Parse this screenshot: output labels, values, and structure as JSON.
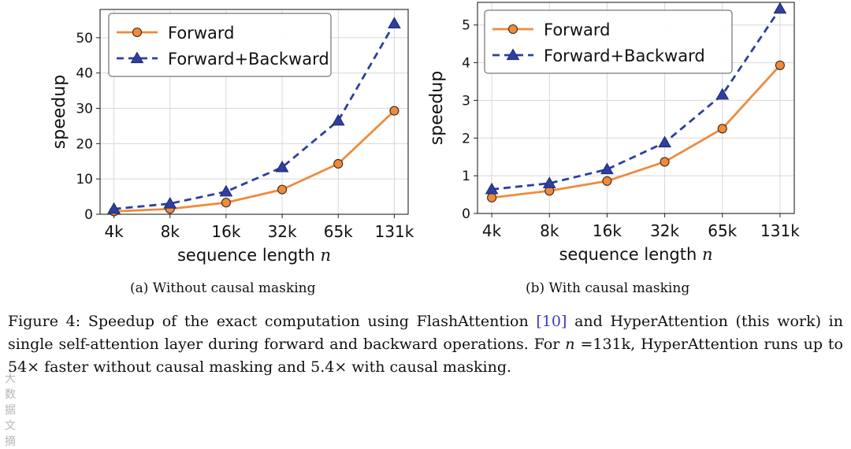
{
  "chart_data": [
    {
      "type": "line",
      "id": "a",
      "categories": [
        "4k",
        "8k",
        "16k",
        "32k",
        "65k",
        "131k"
      ],
      "series": [
        {
          "name": "Forward",
          "values": [
            0.8,
            1.5,
            3.3,
            7.0,
            14.3,
            29.3
          ],
          "color": "#f08a3c",
          "marker": "circle",
          "dash": "solid"
        },
        {
          "name": "Forward+Backward",
          "values": [
            1.5,
            3.0,
            6.4,
            13.3,
            26.5,
            54.0
          ],
          "color": "#2e3f9e",
          "marker": "triangle",
          "dash": "dashed"
        }
      ],
      "xlabel": "sequence length",
      "xlabel_var": "n",
      "ylabel": "speedup",
      "ylim": [
        0,
        58
      ],
      "yticks": [
        0,
        10,
        20,
        30,
        40,
        50
      ],
      "ytick_labels": [
        "0",
        "10",
        "20",
        "30",
        "40",
        "50"
      ],
      "grid": true,
      "legend": "top-left",
      "caption": "(a) Without causal masking"
    },
    {
      "type": "line",
      "id": "b",
      "categories": [
        "4k",
        "8k",
        "16k",
        "32k",
        "65k",
        "131k"
      ],
      "series": [
        {
          "name": "Forward",
          "values": [
            0.42,
            0.6,
            0.86,
            1.37,
            2.25,
            3.93
          ],
          "color": "#f08a3c",
          "marker": "circle",
          "dash": "solid"
        },
        {
          "name": "Forward+Backward",
          "values": [
            0.64,
            0.8,
            1.17,
            1.88,
            3.15,
            5.43
          ],
          "color": "#2e3f9e",
          "marker": "triangle",
          "dash": "dashed"
        }
      ],
      "xlabel": "sequence length",
      "xlabel_var": "n",
      "ylabel": "speedup",
      "ylim": [
        0,
        5.6
      ],
      "yticks": [
        0,
        1,
        2,
        3,
        4,
        5
      ],
      "ytick_labels": [
        "0",
        "1",
        "2",
        "3",
        "4",
        "5"
      ],
      "grid": true,
      "legend": "top-left",
      "caption": "(b) With causal masking"
    }
  ],
  "caption": {
    "part1": "Figure 4: Speedup of the exact computation using FlashAttention ",
    "ref": "[10]",
    "part2": " and HyperAttention (this work) in single self-attention layer during forward and backward operations. For ",
    "var": "n",
    "part3": " =131k, HyperAttention runs up to 54× faster without causal masking and 5.4× with causal masking."
  },
  "watermark": "大数据文摘"
}
